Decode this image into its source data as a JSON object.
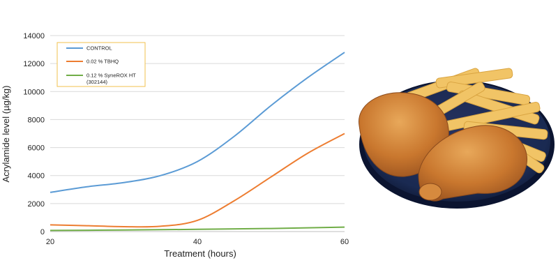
{
  "chart_data": {
    "type": "line",
    "title": "",
    "xlabel": "Treatment (hours)",
    "ylabel": "Acrylamide level (µg/kg)",
    "xlim": [
      20,
      60
    ],
    "ylim": [
      0,
      14000
    ],
    "xticks": [
      20,
      40,
      60
    ],
    "yticks": [
      0,
      2000,
      4000,
      6000,
      8000,
      10000,
      12000,
      14000
    ],
    "grid": "horizontal",
    "legend_position": "top-left",
    "series": [
      {
        "name": "CONTROL",
        "color": "#5b9bd5",
        "x": [
          20,
          25,
          30,
          35,
          40,
          45,
          50,
          55,
          60
        ],
        "y": [
          2800,
          3200,
          3500,
          4000,
          5000,
          6800,
          9000,
          11000,
          12800
        ]
      },
      {
        "name": "0.02 % TBHQ",
        "color": "#ed7d31",
        "x": [
          20,
          25,
          30,
          35,
          40,
          45,
          50,
          55,
          60
        ],
        "y": [
          480,
          420,
          350,
          380,
          800,
          2200,
          3900,
          5600,
          7000
        ]
      },
      {
        "name": "0.12 % SyneROX HT",
        "name_line2": "(302144)",
        "color": "#70ad47",
        "x": [
          20,
          30,
          40,
          50,
          60
        ],
        "y": [
          80,
          110,
          160,
          220,
          320
        ]
      }
    ]
  },
  "photo": {
    "description_icon": "fried-chicken-fries-plate-icon"
  }
}
